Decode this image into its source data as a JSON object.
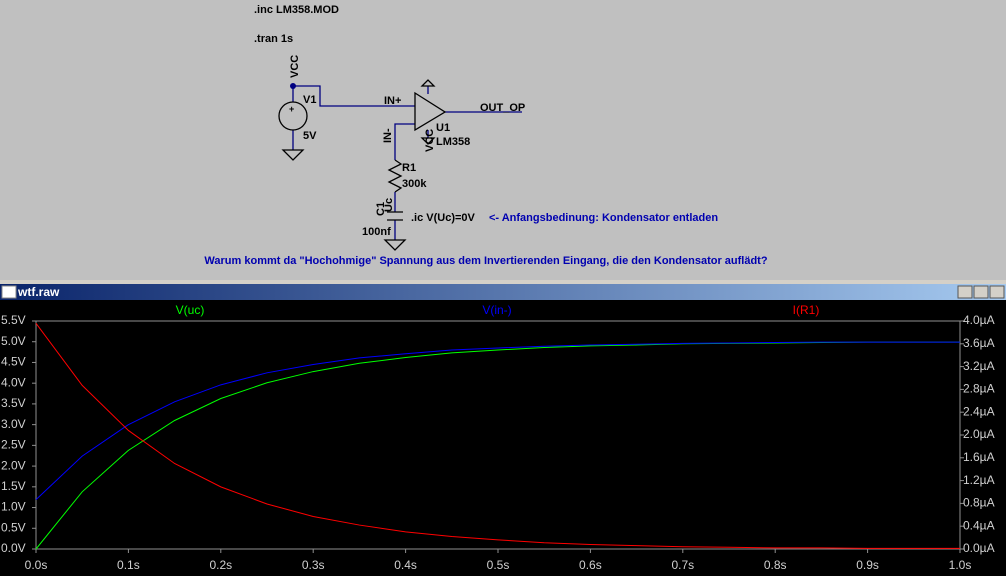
{
  "schematic": {
    "directives": [
      ".inc LM358.MOD",
      ".tran 1s",
      ".ic V(Uc)=0V"
    ],
    "labels": [
      "VCC",
      "V1",
      "5V",
      "IN+",
      "OUT_OP",
      "U1",
      "LM358",
      "IN-",
      "VCC",
      "R1",
      "300k",
      "Uc",
      "C1",
      "100nf"
    ],
    "comment": "<- Anfangsbedinung: Kondensator entladen",
    "question": "Warum kommt da \"Hochohmige\" Spannung aus dem Invertierenden Eingang, die den Kondensator auflädt?"
  },
  "window": {
    "title": "wtf.raw"
  },
  "chart_data": {
    "type": "line",
    "x": [
      0,
      0.05,
      0.1,
      0.15,
      0.2,
      0.25,
      0.3,
      0.35,
      0.4,
      0.45,
      0.5,
      0.55,
      0.6,
      0.65,
      0.7,
      0.75,
      0.8,
      0.85,
      0.9,
      0.95,
      1.0
    ],
    "series": [
      {
        "name": "V(uc)",
        "color": "#00ff00",
        "values": [
          0,
          1.38,
          2.38,
          3.1,
          3.63,
          4.01,
          4.28,
          4.48,
          4.62,
          4.73,
          4.8,
          4.86,
          4.9,
          4.92,
          4.95,
          4.96,
          4.97,
          4.98,
          4.99,
          4.99,
          4.99
        ]
      },
      {
        "name": "V(in-)",
        "color": "#0000ff",
        "values": [
          1.19,
          2.24,
          3.0,
          3.55,
          3.96,
          4.25,
          4.45,
          4.61,
          4.71,
          4.8,
          4.85,
          4.89,
          4.92,
          4.94,
          4.96,
          4.97,
          4.98,
          4.99,
          4.99,
          4.99,
          4.99
        ]
      },
      {
        "name": "I(R1)",
        "color": "#ff0000",
        "axis": "y2",
        "values": [
          3.96,
          2.87,
          2.08,
          1.5,
          1.09,
          0.79,
          0.57,
          0.42,
          0.3,
          0.22,
          0.16,
          0.11,
          0.08,
          0.06,
          0.04,
          0.03,
          0.02,
          0.02,
          0.01,
          0.01,
          0.01
        ]
      }
    ],
    "xlim": [
      0,
      1.0
    ],
    "xticks": [
      {
        "value": 0,
        "label": "0.0s"
      },
      {
        "value": 0.1,
        "label": "0.1s"
      },
      {
        "value": 0.2,
        "label": "0.2s"
      },
      {
        "value": 0.3,
        "label": "0.3s"
      },
      {
        "value": 0.4,
        "label": "0.4s"
      },
      {
        "value": 0.5,
        "label": "0.5s"
      },
      {
        "value": 0.6,
        "label": "0.6s"
      },
      {
        "value": 0.7,
        "label": "0.7s"
      },
      {
        "value": 0.8,
        "label": "0.8s"
      },
      {
        "value": 0.9,
        "label": "0.9s"
      },
      {
        "value": 1.0,
        "label": "1.0s"
      }
    ],
    "ylim": [
      0,
      5.5
    ],
    "yticks": [
      {
        "value": 0,
        "label": "0.0V"
      },
      {
        "value": 0.5,
        "label": "0.5V"
      },
      {
        "value": 1,
        "label": "1.0V"
      },
      {
        "value": 1.5,
        "label": "1.5V"
      },
      {
        "value": 2,
        "label": "2.0V"
      },
      {
        "value": 2.5,
        "label": "2.5V"
      },
      {
        "value": 3,
        "label": "3.0V"
      },
      {
        "value": 3.5,
        "label": "3.5V"
      },
      {
        "value": 4,
        "label": "4.0V"
      },
      {
        "value": 4.5,
        "label": "4.5V"
      },
      {
        "value": 5,
        "label": "5.0V"
      },
      {
        "value": 5.5,
        "label": "5.5V"
      }
    ],
    "y2lim": [
      0,
      4.0
    ],
    "y2ticks": [
      {
        "value": 0,
        "label": "0.0µA"
      },
      {
        "value": 0.4,
        "label": "0.4µA"
      },
      {
        "value": 0.8,
        "label": "0.8µA"
      },
      {
        "value": 1.2,
        "label": "1.2µA"
      },
      {
        "value": 1.6,
        "label": "1.6µA"
      },
      {
        "value": 2.0,
        "label": "2.0µA"
      },
      {
        "value": 2.4,
        "label": "2.4µA"
      },
      {
        "value": 2.8,
        "label": "2.8µA"
      },
      {
        "value": 3.2,
        "label": "3.2µA"
      },
      {
        "value": 3.6,
        "label": "3.6µA"
      },
      {
        "value": 4.0,
        "label": "4.0µA"
      }
    ],
    "grid": false
  }
}
